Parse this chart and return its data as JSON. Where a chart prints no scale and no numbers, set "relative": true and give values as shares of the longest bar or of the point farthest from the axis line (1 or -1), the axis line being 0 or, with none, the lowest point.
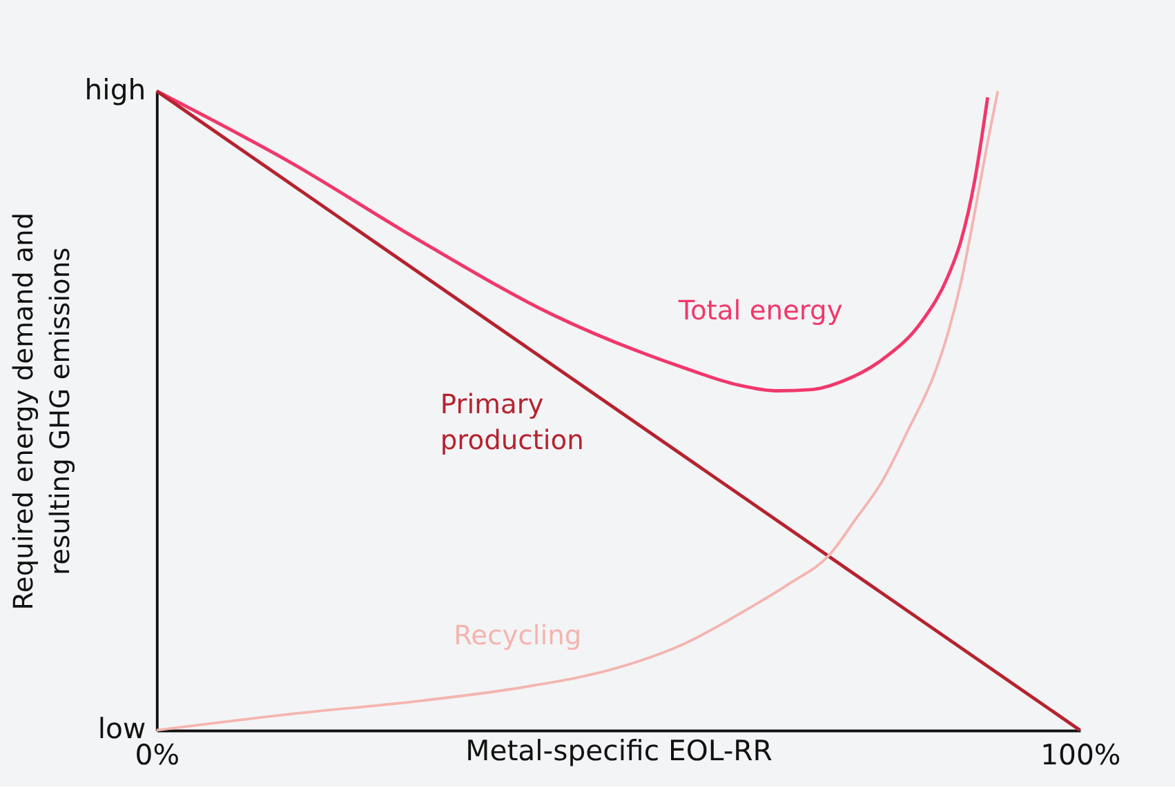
{
  "chart_data": {
    "type": "line",
    "xlabel": "Metal-specific EOL-RR",
    "ylabel": "Required energy demand and resulting GHG emissions",
    "xlim": [
      0,
      100
    ],
    "xticks": [
      {
        "value": 0,
        "label": "0%"
      },
      {
        "value": 100,
        "label": "100%"
      }
    ],
    "relative": true,
    "annotations": [
      "low",
      "high"
    ],
    "grid": false,
    "marker": "none",
    "line_style": "solid",
    "series": [
      {
        "name": "Total energy",
        "color": "#f0386b",
        "x": [
          0,
          14.3,
          28.6,
          42.9,
          57.1,
          63,
          67.1,
          71,
          74.3,
          78.6,
          82.9,
          85.7,
          87.1,
          88.6,
          90
        ],
        "values": [
          1,
          0.89,
          0.765,
          0.65,
          0.567,
          0.54,
          0.531,
          0.533,
          0.546,
          0.58,
          0.64,
          0.71,
          0.765,
          0.86,
          0.99
        ]
      },
      {
        "name": "Primary production",
        "color": "#b5232f",
        "x": [
          0,
          100
        ],
        "values": [
          1,
          0
        ]
      },
      {
        "name": "Recycling",
        "color": "#f4b5b0",
        "x": [
          0,
          14.3,
          28.6,
          40,
          50,
          57.1,
          64.3,
          68.6,
          72.9,
          75.7,
          78.6,
          81.4,
          84.3,
          85.7,
          87.1,
          88.6,
          90,
          91.1
        ],
        "values": [
          0,
          0.025,
          0.046,
          0.068,
          0.098,
          0.135,
          0.192,
          0.23,
          0.275,
          0.33,
          0.39,
          0.47,
          0.56,
          0.621,
          0.7,
          0.81,
          0.92,
          1.0
        ]
      }
    ]
  }
}
